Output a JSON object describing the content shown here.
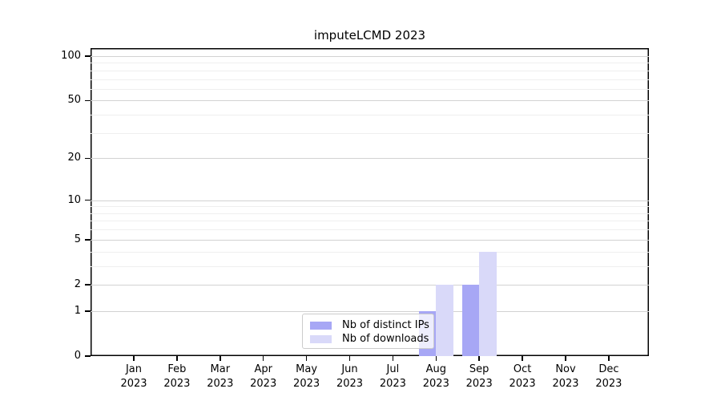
{
  "chart_data": {
    "type": "bar",
    "title": "imputeLCMD 2023",
    "x_year_line": "2023",
    "categories": [
      "Jan",
      "Feb",
      "Mar",
      "Apr",
      "May",
      "Jun",
      "Jul",
      "Aug",
      "Sep",
      "Oct",
      "Nov",
      "Dec"
    ],
    "series": [
      {
        "name": "Nb of distinct IPs",
        "color": "#a7a7f5",
        "values": [
          0,
          0,
          0,
          0,
          0,
          0,
          0,
          1,
          2,
          0,
          0,
          0
        ]
      },
      {
        "name": "Nb of downloads",
        "color": "#d9d9f9",
        "values": [
          0,
          0,
          0,
          0,
          0,
          0,
          0,
          2,
          4,
          0,
          0,
          0
        ]
      }
    ],
    "y_scale": "log1p",
    "ylim": [
      0,
      113.3
    ],
    "y_major_ticks": [
      0,
      1,
      2,
      5,
      10,
      20,
      50,
      100
    ],
    "y_minor_gridlines": [
      3,
      4,
      6,
      7,
      8,
      9,
      30,
      40,
      60,
      70,
      80,
      90
    ],
    "grid": "on",
    "legend_position": "lower center"
  }
}
